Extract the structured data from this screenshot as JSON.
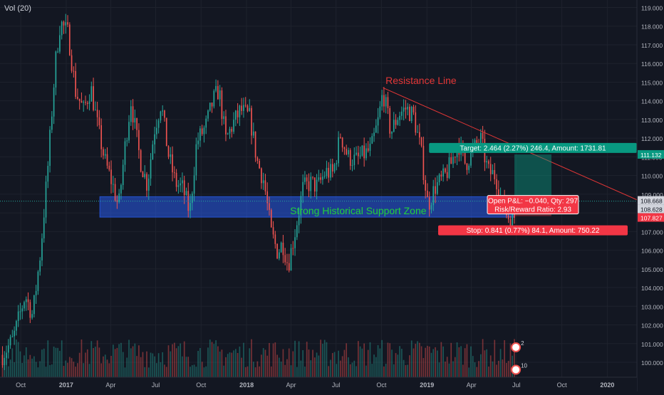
{
  "indicator_label": "Vol (20)",
  "chart_data": {
    "type": "candlestick",
    "title": "",
    "x_ticks": [
      "Oct",
      "2017",
      "Apr",
      "Jul",
      "Oct",
      "2018",
      "Apr",
      "Jul",
      "Oct",
      "2019",
      "Apr",
      "Jul",
      "Oct",
      "2020"
    ],
    "x_tick_dates": [
      "2016-10-01",
      "2017-01-01",
      "2017-04-01",
      "2017-07-01",
      "2017-10-01",
      "2018-01-01",
      "2018-04-01",
      "2018-07-01",
      "2018-10-01",
      "2019-01-01",
      "2019-04-01",
      "2019-07-01",
      "2019-10-01",
      "2020-01-01"
    ],
    "y_ticks": [
      100,
      101,
      102,
      103,
      104,
      105,
      106,
      107,
      108,
      109,
      110,
      111,
      112,
      113,
      114,
      115,
      116,
      117,
      118,
      119
    ],
    "y_tick_labels": [
      "100.000",
      "101.000",
      "102.000",
      "103.000",
      "104.000",
      "105.000",
      "106.000",
      "107.000",
      "108.000",
      "109.000",
      "110.000",
      "111.000",
      "112.000",
      "113.000",
      "114.000",
      "115.000",
      "116.000",
      "117.000",
      "118.000",
      "119.000"
    ],
    "ylim": [
      99.2,
      119.4
    ],
    "xlim": [
      "2016-08-20",
      "2020-03-01"
    ],
    "price_path": [
      [
        "2016-08-25",
        100.4
      ],
      [
        "2016-09-15",
        101.2
      ],
      [
        "2016-10-10",
        103.6
      ],
      [
        "2016-10-25",
        102.5
      ],
      [
        "2016-11-10",
        105.9
      ],
      [
        "2016-11-25",
        110.5
      ],
      [
        "2016-12-10",
        116.0
      ],
      [
        "2016-12-20",
        118.2
      ],
      [
        "2017-01-05",
        117.6
      ],
      [
        "2017-01-20",
        114.5
      ],
      [
        "2017-02-05",
        113.5
      ],
      [
        "2017-02-20",
        114.7
      ],
      [
        "2017-03-05",
        112.7
      ],
      [
        "2017-03-20",
        110.8
      ],
      [
        "2017-04-05",
        109.5
      ],
      [
        "2017-04-17",
        108.3
      ],
      [
        "2017-05-01",
        111.8
      ],
      [
        "2017-05-12",
        114.0
      ],
      [
        "2017-05-30",
        110.9
      ],
      [
        "2017-06-14",
        109.5
      ],
      [
        "2017-06-28",
        112.4
      ],
      [
        "2017-07-12",
        113.9
      ],
      [
        "2017-07-26",
        111.2
      ],
      [
        "2017-08-10",
        109.6
      ],
      [
        "2017-08-25",
        109.3
      ],
      [
        "2017-09-08",
        108.0
      ],
      [
        "2017-09-22",
        111.8
      ],
      [
        "2017-10-10",
        112.6
      ],
      [
        "2017-10-25",
        114.0
      ],
      [
        "2017-11-06",
        114.6
      ],
      [
        "2017-11-20",
        111.9
      ],
      [
        "2017-12-05",
        112.8
      ],
      [
        "2017-12-20",
        113.5
      ],
      [
        "2018-01-08",
        113.1
      ],
      [
        "2018-01-22",
        110.8
      ],
      [
        "2018-02-05",
        109.7
      ],
      [
        "2018-02-20",
        106.9
      ],
      [
        "2018-03-05",
        105.9
      ],
      [
        "2018-03-15",
        106.4
      ],
      [
        "2018-03-26",
        105.2
      ],
      [
        "2018-04-10",
        107.1
      ],
      [
        "2018-04-25",
        109.3
      ],
      [
        "2018-05-10",
        109.6
      ],
      [
        "2018-05-25",
        109.4
      ],
      [
        "2018-06-10",
        110.2
      ],
      [
        "2018-06-25",
        110.1
      ],
      [
        "2018-07-10",
        112.2
      ],
      [
        "2018-07-25",
        111.0
      ],
      [
        "2018-08-10",
        110.8
      ],
      [
        "2018-08-25",
        111.1
      ],
      [
        "2018-09-10",
        111.4
      ],
      [
        "2018-09-25",
        113.0
      ],
      [
        "2018-10-04",
        114.5
      ],
      [
        "2018-10-20",
        112.3
      ],
      [
        "2018-11-05",
        113.3
      ],
      [
        "2018-11-20",
        113.6
      ],
      [
        "2018-12-05",
        113.2
      ],
      [
        "2018-12-20",
        111.3
      ],
      [
        "2019-01-03",
        108.4
      ],
      [
        "2019-01-18",
        109.4
      ],
      [
        "2019-02-05",
        109.9
      ],
      [
        "2019-02-20",
        110.7
      ],
      [
        "2019-03-05",
        111.8
      ],
      [
        "2019-03-20",
        110.6
      ],
      [
        "2019-04-05",
        111.4
      ],
      [
        "2019-04-20",
        111.9
      ],
      [
        "2019-05-05",
        110.2
      ],
      [
        "2019-05-20",
        110.0
      ],
      [
        "2019-06-05",
        108.2
      ],
      [
        "2019-06-20",
        107.6
      ],
      [
        "2019-06-27",
        107.8
      ]
    ],
    "volume_level": [
      0.35,
      0.55
    ],
    "lines": {
      "resistance": {
        "label": "Resistance Line",
        "from": [
          "2018-10-04",
          114.7
        ],
        "to": [
          "2020-03-01",
          108.7
        ],
        "color": "#e23636"
      },
      "last_price": {
        "value": 108.628,
        "color": "#26a69a"
      },
      "open_level": {
        "value": 108.668,
        "color": "#b2b5be"
      }
    },
    "support_zone": {
      "label": "Strong Historical Support Zone",
      "from": "2017-03-10",
      "to": "2019-06-27",
      "y_low": 107.77,
      "y_high": 108.87,
      "color": "#2962ff",
      "label_color": "#22d03c"
    },
    "position": {
      "start": "2019-06-27",
      "end": "2019-09-10",
      "entry": 108.668,
      "target": 111.132,
      "stop": 107.827,
      "target_label": "Target: 2.464 (2.27%) 246.4, Amount: 1731.81",
      "stop_label": "Stop: 0.841 (0.77%) 84.1, Amount: 750.22",
      "pnl_label": "Open P&L: −0.040, Qty: 297",
      "rr_label": "Risk/Reward Ratio: 2.93",
      "target_color": "#089981",
      "stop_color": "#f23645"
    },
    "price_tags": [
      {
        "value": 111.132,
        "label": "111.132",
        "color": "#089981"
      },
      {
        "value": 108.668,
        "label": "108.668",
        "color": "#d1d4dc"
      },
      {
        "value": 108.628,
        "label": "108.628",
        "color": "#d1d4dc"
      },
      {
        "value": 107.827,
        "label": "107.827",
        "color": "#f23645"
      }
    ],
    "event_icons": [
      {
        "date": "2019-06-30",
        "y": 100.8,
        "label": "2"
      },
      {
        "date": "2019-06-30",
        "y": 99.6,
        "label": "10"
      }
    ],
    "colors": {
      "up": "#26a69a",
      "down": "#ef5350",
      "background": "#131722",
      "grid": "#1e222d"
    }
  }
}
